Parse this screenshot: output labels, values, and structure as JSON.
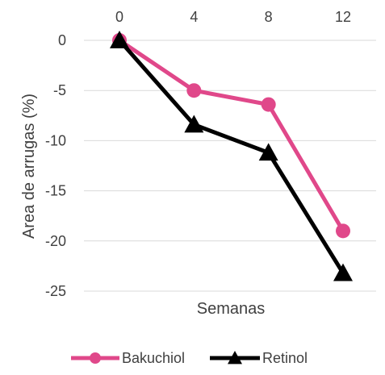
{
  "chart_data": {
    "type": "line",
    "title": "",
    "xlabel": "Semanas",
    "ylabel": "Area de  arrugas (%)",
    "x": [
      0,
      4,
      8,
      12
    ],
    "x_tick_labels": [
      "0",
      "4",
      "8",
      "12"
    ],
    "x_axis_position": "top",
    "ylim": [
      -25,
      0
    ],
    "y_ticks": [
      0,
      -5,
      -10,
      -15,
      -20,
      -25
    ],
    "grid": "horizontal",
    "legend_position": "bottom",
    "series": [
      {
        "name": "Bakuchiol",
        "color": "#e0488a",
        "marker": "circle",
        "values": [
          0,
          -5.0,
          -6.4,
          -19.0
        ]
      },
      {
        "name": "Retinol",
        "color": "#000000",
        "marker": "triangle",
        "values": [
          0,
          -8.4,
          -11.2,
          -23.2
        ]
      }
    ]
  }
}
